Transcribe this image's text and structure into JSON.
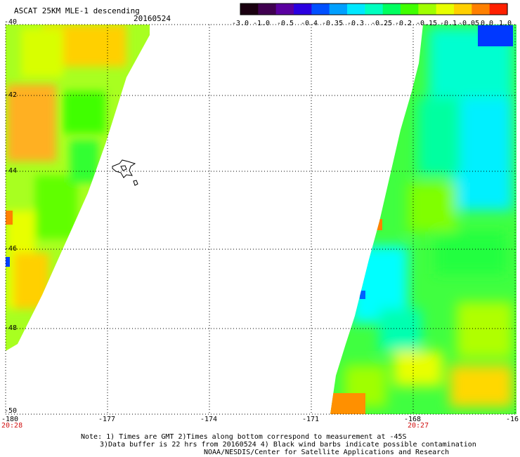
{
  "header": {
    "title": "ASCAT 25KM MLE-1 descending",
    "date": "20160524"
  },
  "colorbar": {
    "colors": [
      "#1a0010",
      "#400050",
      "#5a00a0",
      "#2b00e0",
      "#0050ff",
      "#00a0ff",
      "#00e8ff",
      "#00ffc0",
      "#00ff60",
      "#40ff00",
      "#a0ff00",
      "#e8ff00",
      "#ffd000",
      "#ff8000",
      "#ff2000"
    ],
    "tick_labels": [
      "-3.0",
      "-1.0",
      "-0.5",
      "-0.4",
      "-0.35",
      "-0.3",
      "-0.25",
      "-0.2",
      "-0.15",
      "-0.1",
      "-0.05",
      "0.0",
      "1.0"
    ]
  },
  "axes": {
    "y_labels": [
      "-40",
      "-42",
      "-44",
      "-46",
      "-48",
      "-50"
    ],
    "x_labels": [
      "-180",
      "-177",
      "-174",
      "-171",
      "-168",
      "-16"
    ],
    "times": [
      "20:28",
      "20:27"
    ]
  },
  "notes": {
    "line1": "Note: 1) Times are GMT 2)Times along bottom correspond to measurement at -45S",
    "line2": "3)Data buffer is 22 hrs from 20160524 4) Black wind barbs indicate possible contamination",
    "line3": "NOAA/NESDIS/Center for Satellite Applications and Research"
  }
}
